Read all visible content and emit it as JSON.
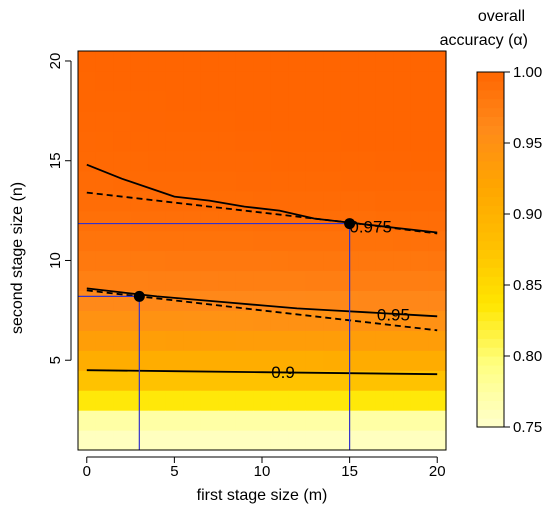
{
  "chart_data": {
    "type": "heatmap",
    "xlabel": "first stage size  (m)",
    "ylabel": "second stage size  (n)",
    "colorbar_title_line1": "overall",
    "colorbar_title_line2": "accuracy (α)",
    "xlim": [
      -0.5,
      20.5
    ],
    "ylim": [
      0.5,
      20.5
    ],
    "x_ticks": [
      0,
      5,
      10,
      15,
      20
    ],
    "x_tick_labels": [
      "0",
      "5",
      "10",
      "15",
      "20"
    ],
    "y_ticks": [
      5,
      10,
      15,
      20
    ],
    "y_tick_labels": [
      "5",
      "10",
      "15",
      "20"
    ],
    "colorbar_range": [
      0.75,
      1.0
    ],
    "colorbar_ticks": [
      0.75,
      0.8,
      0.85,
      0.9,
      0.95,
      1.0
    ],
    "colorbar_tick_labels": [
      "0.75",
      "0.80",
      "0.85",
      "0.90",
      "0.95",
      "1.00"
    ],
    "colormap": [
      "#ffffc8",
      "#ffff80",
      "#ffe600",
      "#ffc000",
      "#ffa500",
      "#ff8a1a",
      "#ff6400"
    ],
    "contours": [
      {
        "level": "0.9",
        "style": "solid",
        "x": [
          0,
          5,
          10,
          15,
          20
        ],
        "y": [
          4.5,
          4.45,
          4.4,
          4.35,
          4.3
        ]
      },
      {
        "level": "0.95",
        "style": "solid",
        "x": [
          0,
          2,
          4,
          6,
          8,
          10,
          12,
          14,
          16,
          18,
          20
        ],
        "y": [
          8.6,
          8.4,
          8.2,
          8.05,
          7.9,
          7.75,
          7.6,
          7.5,
          7.4,
          7.3,
          7.2
        ]
      },
      {
        "level": "",
        "style": "dashed",
        "x": [
          0,
          3,
          6,
          10,
          15,
          20
        ],
        "y": [
          8.5,
          8.2,
          7.9,
          7.5,
          7.0,
          6.5
        ]
      },
      {
        "level": "0.975",
        "style": "solid",
        "x": [
          0,
          2,
          4,
          5,
          7,
          9,
          11,
          13,
          15,
          17,
          20
        ],
        "y": [
          14.8,
          14.1,
          13.5,
          13.2,
          13.0,
          12.7,
          12.5,
          12.1,
          11.9,
          11.7,
          11.4
        ]
      },
      {
        "level": "",
        "style": "dashed",
        "x": [
          0,
          5,
          10,
          15,
          20
        ],
        "y": [
          13.4,
          12.9,
          12.4,
          11.9,
          11.35
        ]
      }
    ],
    "contour_labels": [
      {
        "text": "0.9",
        "x": 11.2,
        "y": 4.4
      },
      {
        "text": "0.95",
        "x": 17.5,
        "y": 7.3
      },
      {
        "text": "0.975",
        "x": 16.2,
        "y": 11.7
      }
    ],
    "points": [
      {
        "x": 3,
        "y": 8.2
      },
      {
        "x": 15,
        "y": 11.85
      }
    ],
    "guide_lines_color": "#3333cc"
  }
}
